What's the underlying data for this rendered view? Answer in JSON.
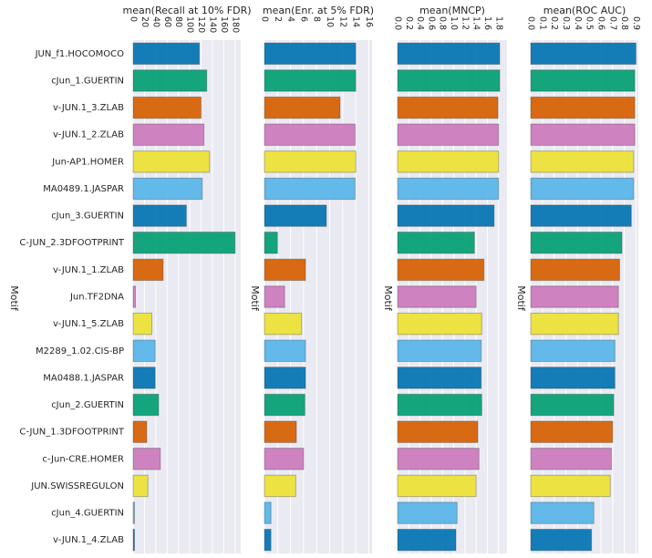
{
  "palette": [
    "#0173b2",
    "#029e73",
    "#d55e00",
    "#cc78bc",
    "#ece133",
    "#56b4e9"
  ],
  "chart_data": {
    "type": "bar",
    "orientation": "horizontal",
    "grid": true,
    "ylabel": "Motif",
    "categories": [
      "JUN_f1.HOCOMOCO",
      "cJun_1.GUERTIN",
      "v-JUN.1_3.ZLAB",
      "v-JUN.1_2.ZLAB",
      "Jun-AP1.HOMER",
      "MA0489.1.JASPAR",
      "cJun_3.GUERTIN",
      "C-JUN_2.3DFOOTPRINT",
      "v-JUN.1_1.ZLAB",
      "Jun.TF2DNA",
      "v-JUN.1_5.ZLAB",
      "M2289_1.02.CIS-BP",
      "MA0488.1.JASPAR",
      "cJun_2.GUERTIN",
      "C-JUN_1.3DFOOTPRINT",
      "c-Jun-CRE.HOMER",
      "JUN.SWISSREGULON",
      "cJun_4.GUERTIN",
      "v-JUN.1_4.ZLAB"
    ],
    "panels": [
      {
        "title": "mean(Recall at 10% FDR)",
        "xlim": [
          0,
          190
        ],
        "ticks": [
          0,
          20,
          40,
          60,
          80,
          100,
          120,
          140,
          160,
          180
        ],
        "tick_labels": [
          "0",
          "20",
          "40",
          "60",
          "80",
          "100",
          "120",
          "140",
          "160",
          "180"
        ],
        "values": [
          117,
          130,
          120,
          125,
          135,
          122,
          94,
          180,
          53,
          4,
          33,
          39,
          39,
          45,
          24,
          48,
          26,
          1,
          1
        ]
      },
      {
        "title": "mean(Enr. at 5% FDR)",
        "xlim": [
          0,
          16.5
        ],
        "ticks": [
          0,
          2,
          4,
          6,
          8,
          10,
          12,
          14,
          16
        ],
        "tick_labels": [
          "0",
          "2",
          "4",
          "6",
          "8",
          "10",
          "12",
          "14",
          "16"
        ],
        "values": [
          14.0,
          14.0,
          11.6,
          13.9,
          14.0,
          13.9,
          9.5,
          2.0,
          6.3,
          3.1,
          5.7,
          6.3,
          6.3,
          6.2,
          4.9,
          6.0,
          4.8,
          1.0,
          1.0
        ]
      },
      {
        "title": "mean(MNCP)",
        "xlim": [
          0,
          1.95
        ],
        "ticks": [
          0.0,
          0.2,
          0.4,
          0.6,
          0.8,
          1.0,
          1.2,
          1.4,
          1.6,
          1.8
        ],
        "tick_labels": [
          "0.0",
          "0.2",
          "0.4",
          "0.6",
          "0.8",
          "1.0",
          "1.2",
          "1.4",
          "1.6",
          "1.8"
        ],
        "values": [
          1.82,
          1.82,
          1.79,
          1.8,
          1.8,
          1.8,
          1.72,
          1.37,
          1.54,
          1.4,
          1.5,
          1.49,
          1.49,
          1.5,
          1.43,
          1.45,
          1.4,
          1.06,
          1.04
        ]
      },
      {
        "title": "mean(ROC AUC)",
        "xlim": [
          0,
          0.92
        ],
        "ticks": [
          0.0,
          0.1,
          0.2,
          0.3,
          0.4,
          0.5,
          0.6,
          0.7,
          0.8,
          0.9
        ],
        "tick_labels": [
          "0.0",
          "0.1",
          "0.2",
          "0.3",
          "0.4",
          "0.5",
          "0.6",
          "0.7",
          "0.8",
          "0.9"
        ],
        "values": [
          0.9,
          0.89,
          0.89,
          0.89,
          0.88,
          0.88,
          0.86,
          0.78,
          0.76,
          0.75,
          0.75,
          0.72,
          0.72,
          0.71,
          0.7,
          0.69,
          0.68,
          0.54,
          0.52
        ]
      }
    ]
  }
}
